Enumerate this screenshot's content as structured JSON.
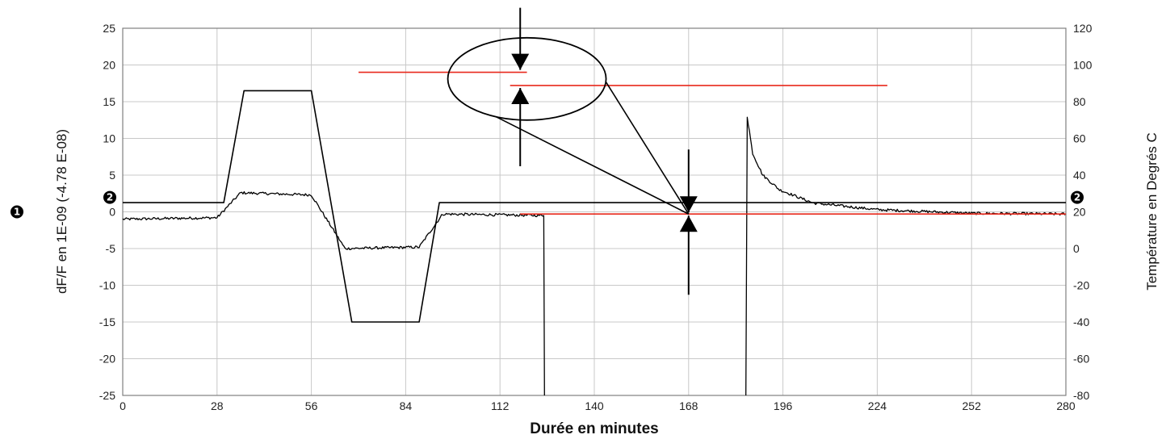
{
  "chart_data": {
    "type": "line",
    "xlabel": "Durée en minutes",
    "ylabel_left": "dF/F en 1E-09 (-4.78 E-08)",
    "ylabel_right": "Température en  Degrés C",
    "xlim": [
      0,
      280
    ],
    "ylim_left": [
      -25,
      25
    ],
    "ylim_right": [
      -80,
      120
    ],
    "x_ticks": [
      0,
      28,
      56,
      84,
      112,
      140,
      168,
      196,
      224,
      252,
      280
    ],
    "x_tick_labels": [
      "0",
      "28",
      "56",
      "84",
      "112",
      "140",
      "168",
      "196",
      "224",
      "252",
      "280"
    ],
    "y_left_ticks": [
      25,
      20,
      15,
      10,
      5,
      0,
      -5,
      -10,
      -15,
      -20,
      -25
    ],
    "y_left_tick_labels": [
      "25",
      "20",
      "15",
      "10",
      "5",
      "0",
      "-5",
      "-10",
      "-15",
      "-20",
      "-25"
    ],
    "y_right_ticks": [
      120,
      100,
      80,
      60,
      40,
      20,
      0,
      -20,
      -40,
      -60,
      -80
    ],
    "y_right_tick_labels": [
      "120",
      "100",
      "80",
      "60",
      "40",
      "20",
      "0",
      "-20",
      "-40",
      "-60",
      "-80"
    ],
    "grid": true,
    "series": [
      {
        "axis": "right",
        "color": "#000000",
        "points": [
          [
            0,
            25
          ],
          [
            30,
            25
          ],
          [
            36,
            86
          ],
          [
            56,
            86
          ],
          [
            68,
            -40
          ],
          [
            88,
            -40
          ],
          [
            94,
            25
          ],
          [
            280,
            25
          ]
        ]
      },
      {
        "axis": "left",
        "color": "#000000",
        "noisy": true,
        "segments": [
          [
            [
              0,
              -1.0
            ],
            [
              28,
              -0.8
            ],
            [
              35,
              2.6
            ],
            [
              56,
              2.3
            ],
            [
              66,
              -5.0
            ],
            [
              88,
              -4.8
            ],
            [
              95,
              -0.3
            ],
            [
              125,
              -0.5
            ],
            [
              125.2,
              -25
            ]
          ],
          [
            [
              185,
              -25
            ],
            [
              185.4,
              13
            ],
            [
              187,
              8
            ],
            [
              190,
              5
            ],
            [
              195,
              3
            ],
            [
              205,
              1.2
            ],
            [
              224,
              0.3
            ],
            [
              252,
              -0.2
            ],
            [
              280,
              -0.3
            ]
          ]
        ]
      }
    ],
    "reference_lines": [
      {
        "axis": "left",
        "y": 19,
        "x_range": [
          70,
          120
        ],
        "color": "#e8291c"
      },
      {
        "axis": "left",
        "y": 17.2,
        "x_range": [
          115,
          227
        ],
        "color": "#e8291c"
      },
      {
        "axis": "left",
        "y": -0.3,
        "x_range": [
          118,
          280
        ],
        "color": "#e8291c"
      }
    ],
    "annotations": [
      {
        "marker": "❶",
        "side": "left"
      },
      {
        "marker": "❷",
        "side": "left",
        "axis": "left",
        "y": 1.2
      },
      {
        "marker": "❷",
        "side": "right",
        "axis": "left",
        "y": 1.2
      },
      {
        "type": "zoom-ellipse",
        "cx": 120,
        "cy": 18.1
      },
      {
        "type": "converging-arrows",
        "x": 118,
        "at_y": [
          19,
          17.2
        ]
      },
      {
        "type": "converging-arrows",
        "x": 168,
        "at_y": [
          -0.3,
          -0.3
        ]
      }
    ]
  },
  "colors": {
    "line": "#000000",
    "reference": "#e8291c",
    "grid": "#c8c8c8",
    "axis": "#808080"
  }
}
